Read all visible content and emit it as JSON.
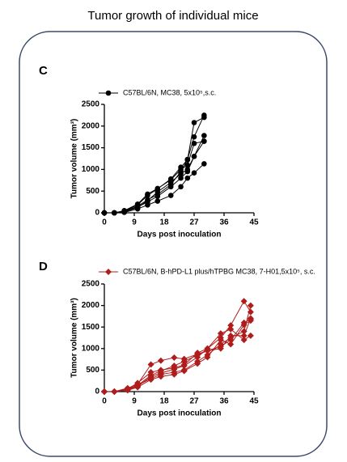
{
  "title": "Tumor growth of individual mice",
  "chart_data": [
    {
      "type": "line",
      "panel_label": "C",
      "legend": "C57BL/6N, MC38, 5x10⁵,s.c.",
      "color": "#000000",
      "marker": "circle",
      "x_label": "Days post inoculation",
      "y_label": "Tumor volume (mm³)",
      "xlim": [
        0,
        45
      ],
      "xticks": [
        0,
        9,
        18,
        27,
        36,
        45
      ],
      "ylim": [
        0,
        2500
      ],
      "yticks": [
        0,
        500,
        1000,
        1500,
        2000,
        2500
      ],
      "x": [
        0,
        3,
        6,
        10,
        13,
        16,
        20,
        23,
        25,
        27,
        30
      ],
      "series": [
        {
          "values": [
            0,
            0,
            30,
            150,
            300,
            420,
            650,
            950,
            1230,
            1750,
            2250
          ]
        },
        {
          "values": [
            0,
            0,
            40,
            180,
            400,
            550,
            780,
            1050,
            1220,
            2080,
            2200
          ]
        },
        {
          "values": [
            0,
            0,
            20,
            120,
            280,
            480,
            700,
            900,
            1000,
            1300,
            1780
          ]
        },
        {
          "values": [
            0,
            0,
            50,
            200,
            430,
            560,
            760,
            1000,
            1100,
            1600,
            1650
          ]
        },
        {
          "values": [
            0,
            0,
            10,
            90,
            180,
            270,
            400,
            600,
            800,
            920,
            1130
          ]
        },
        {
          "values": [
            0,
            0,
            30,
            130,
            250,
            380,
            600,
            800,
            950,
            1300,
            1650
          ]
        }
      ]
    },
    {
      "type": "line",
      "panel_label": "D",
      "legend": "C57BL/6N, B-hPD-L1 plus/hTPBG MC38, 7-H01,5x10⁵, s.c.",
      "color": "#b01c1c",
      "marker": "diamond",
      "x_label": "Days post inoculation",
      "y_label": "Tumor volume (mm³)",
      "xlim": [
        0,
        45
      ],
      "xticks": [
        0,
        9,
        18,
        27,
        36,
        45
      ],
      "ylim": [
        0,
        2500
      ],
      "yticks": [
        0,
        500,
        1000,
        1500,
        2000,
        2500
      ],
      "x": [
        0,
        3,
        7,
        10,
        14,
        17,
        21,
        24,
        28,
        31,
        35,
        38,
        42,
        44
      ],
      "series": [
        {
          "values": [
            0,
            0,
            80,
            170,
            630,
            720,
            790,
            760,
            870,
            950,
            1050,
            1200,
            1600,
            1680
          ]
        },
        {
          "values": [
            0,
            0,
            60,
            200,
            450,
            500,
            550,
            620,
            900,
            1000,
            1250,
            1540,
            2100,
            1850
          ]
        },
        {
          "values": [
            0,
            0,
            50,
            150,
            300,
            400,
            450,
            500,
            700,
            850,
            1100,
            1250,
            1400,
            2000
          ]
        },
        {
          "values": [
            0,
            0,
            40,
            120,
            350,
            430,
            520,
            600,
            800,
            1000,
            1350,
            1450,
            1200,
            1300
          ]
        },
        {
          "values": [
            0,
            0,
            30,
            100,
            280,
            350,
            400,
            480,
            650,
            800,
            1200,
            1100,
            1550,
            1650
          ]
        },
        {
          "values": [
            0,
            0,
            70,
            140,
            380,
            480,
            600,
            700,
            850,
            950,
            1000,
            1300,
            1300,
            1700
          ]
        }
      ]
    }
  ]
}
